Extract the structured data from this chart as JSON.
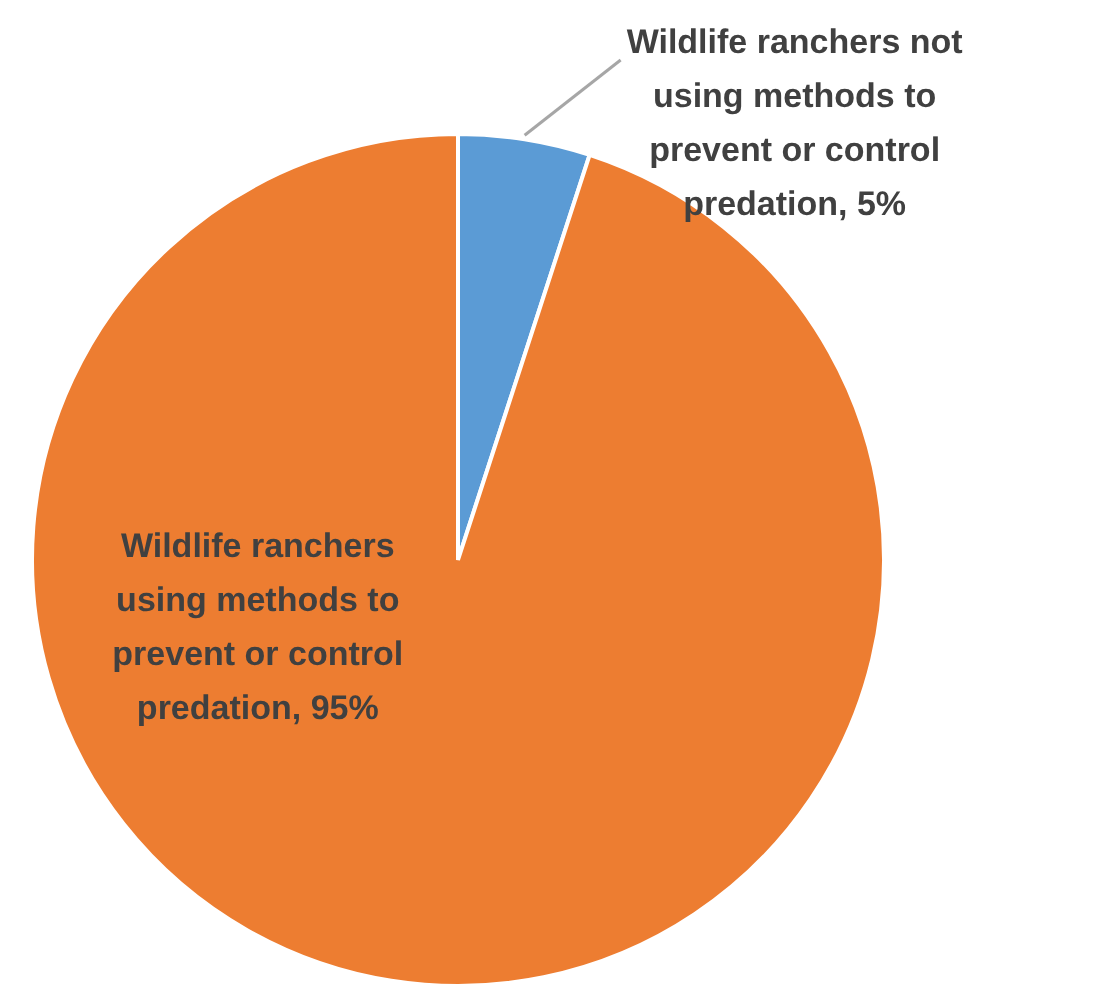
{
  "chart_data": {
    "type": "pie",
    "categories": [
      "Wildlife ranchers not using methods to prevent or control predation",
      "Wildlife ranchers using methods to prevent or control predation"
    ],
    "values": [
      5,
      95
    ],
    "colors": [
      "#5b9bd5",
      "#ed7d31"
    ],
    "value_labels": [
      "5%",
      "95%"
    ]
  }
}
